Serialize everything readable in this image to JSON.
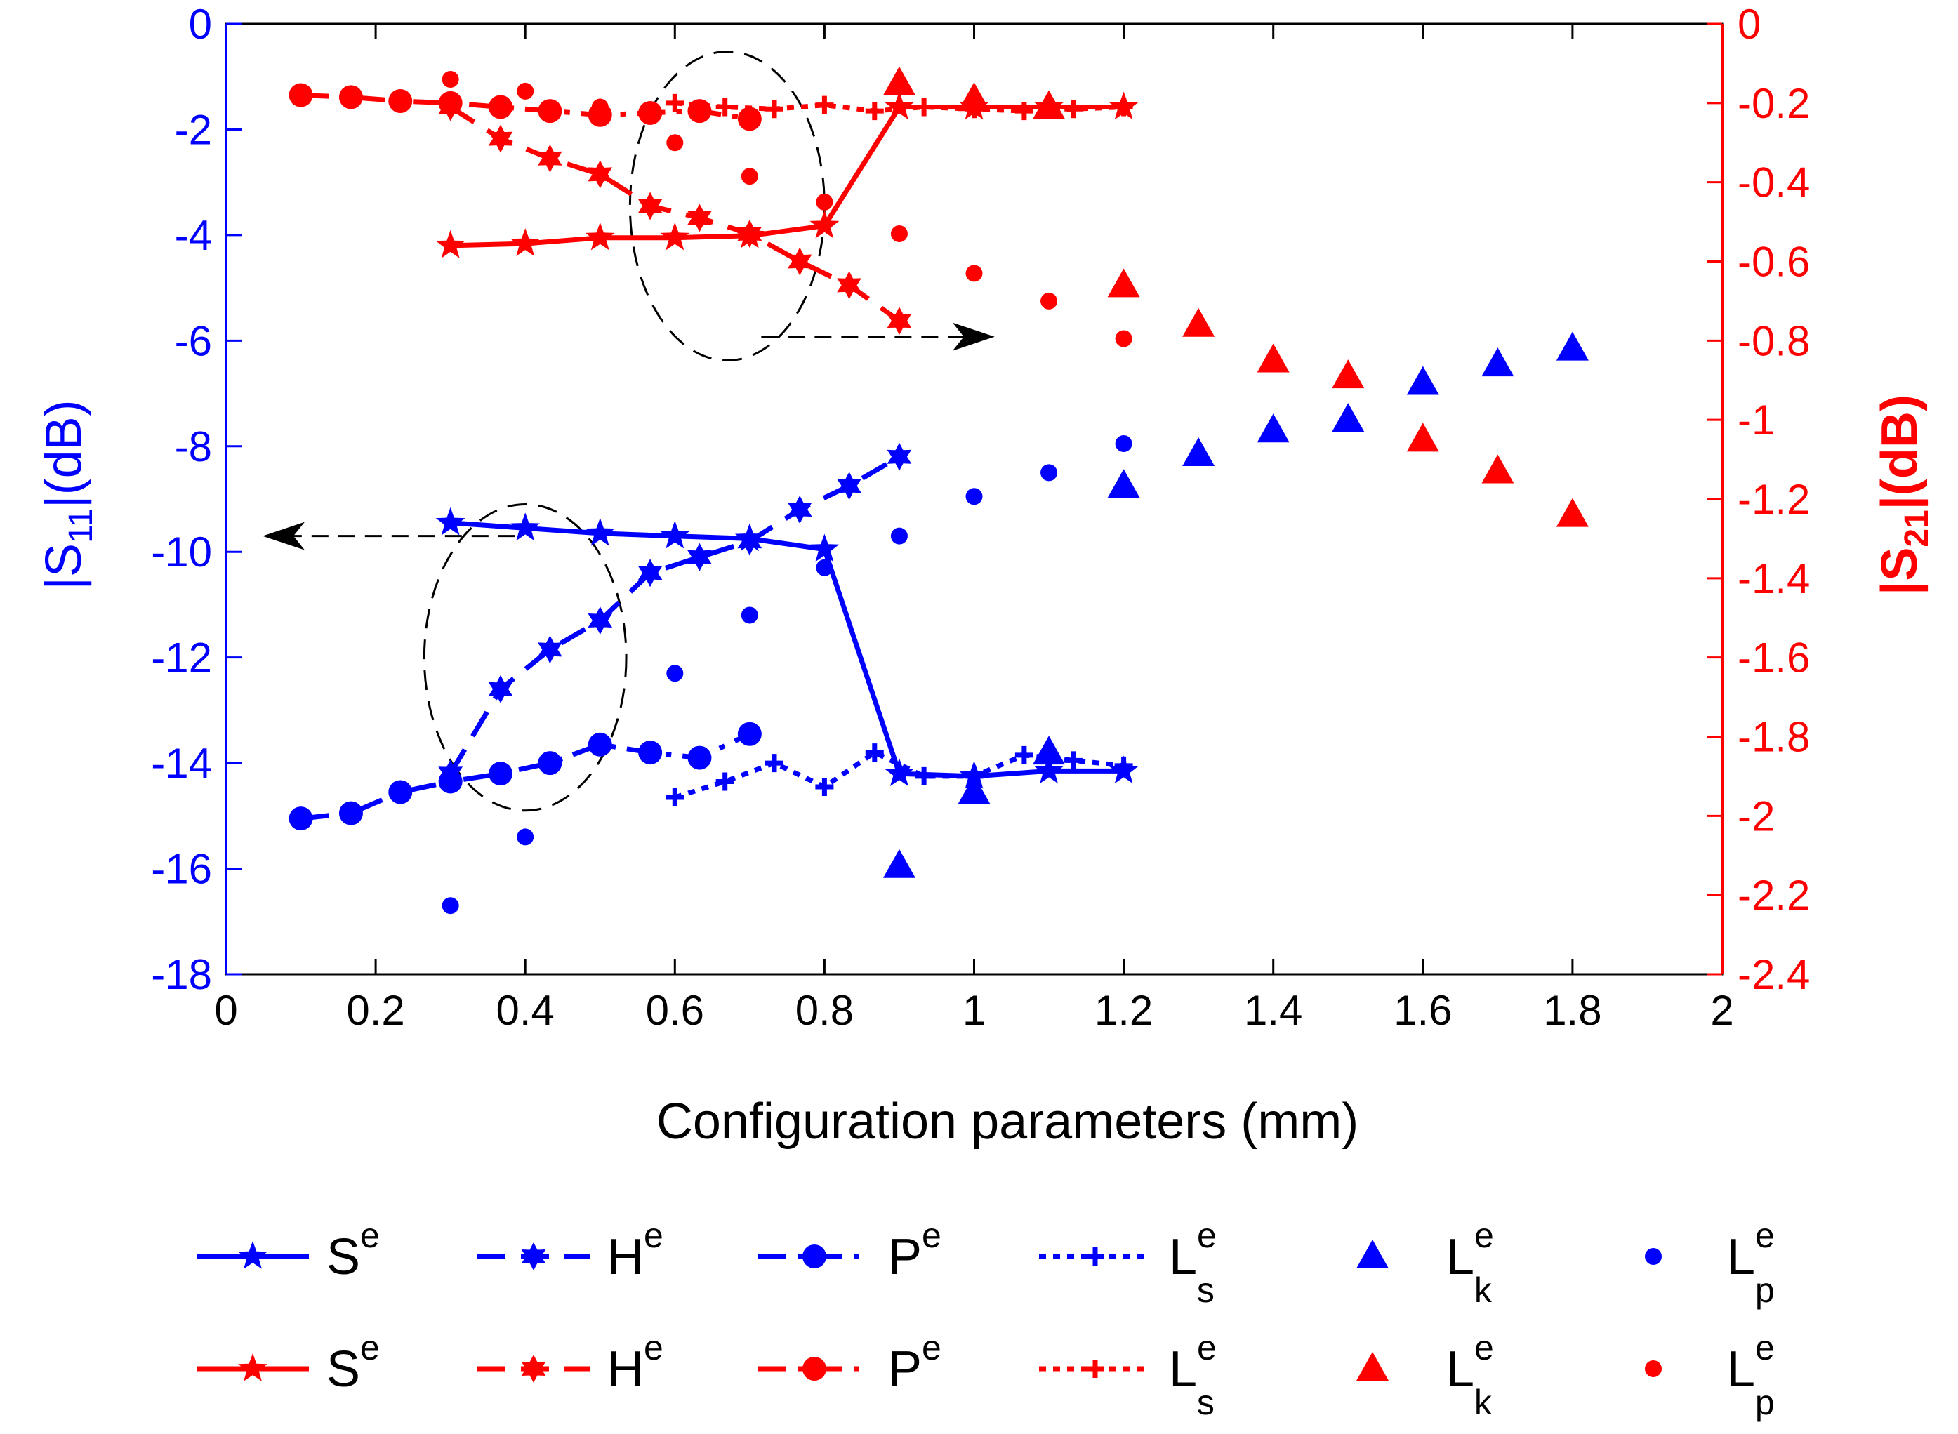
{
  "chart_data": {
    "type": "line",
    "title": "",
    "xlabel": "Configuration parameters (mm)",
    "ylabel_left": "|S11|(dB)",
    "ylabel_right": "|S21|(dB)",
    "xlim": [
      0,
      2
    ],
    "ylim_left": [
      -18,
      0
    ],
    "ylim_right": [
      -2.4,
      0
    ],
    "xticks": [
      0,
      0.2,
      0.4,
      0.6,
      0.8,
      1,
      1.2,
      1.4,
      1.6,
      1.8,
      2
    ],
    "xtick_labels": [
      "0",
      "0.2",
      "0.4",
      "0.6",
      "0.8",
      "1",
      "1.2",
      "1.4",
      "1.6",
      "1.8",
      "2"
    ],
    "yticks_left": [
      0,
      -2,
      -4,
      -6,
      -8,
      -10,
      -12,
      -14,
      -16,
      -18
    ],
    "ytick_labels_left": [
      "0",
      "-2",
      "-4",
      "-6",
      "-8",
      "-10",
      "-12",
      "-14",
      "-16",
      "-18"
    ],
    "yticks_right": [
      0,
      -0.2,
      -0.4,
      -0.6,
      -0.8,
      -1,
      -1.2,
      -1.4,
      -1.6,
      -1.8,
      -2,
      -2.2,
      -2.4
    ],
    "ytick_labels_right": [
      "0",
      "-0.2",
      "-0.4",
      "-0.6",
      "-0.8",
      "-1",
      "-1.2",
      "-1.4",
      "-1.6",
      "-1.8",
      "-2",
      "-2.2",
      "-2.4"
    ],
    "grid": false,
    "legend_position": "bottom",
    "colors": {
      "s11": "#0000ff",
      "s21": "#ff0000",
      "axis_left": "#0000ff",
      "axis_right": "#ff0000",
      "annotation": "#000000"
    },
    "series": [
      {
        "id": "s11-Se",
        "name": "Se",
        "axis": "left",
        "marker": "star",
        "line": "solid",
        "x": [
          0.3,
          0.4,
          0.5,
          0.6,
          0.7,
          0.8,
          0.9,
          1.0,
          1.1,
          1.2
        ],
        "y": [
          -9.45,
          -9.55,
          -9.65,
          -9.7,
          -9.75,
          -9.95,
          -14.2,
          -14.25,
          -14.15,
          -14.15
        ]
      },
      {
        "id": "s11-He",
        "name": "He",
        "axis": "left",
        "marker": "hexstar",
        "line": "dashed",
        "x": [
          0.3,
          0.367,
          0.433,
          0.5,
          0.567,
          0.633,
          0.7,
          0.767,
          0.833,
          0.9
        ],
        "y": [
          -14.2,
          -12.6,
          -11.85,
          -11.3,
          -10.4,
          -10.1,
          -9.8,
          -9.2,
          -8.75,
          -8.2
        ]
      },
      {
        "id": "s11-Pe",
        "name": "Pe",
        "axis": "left",
        "marker": "circle",
        "line": "dashdot",
        "x": [
          0.1,
          0.167,
          0.233,
          0.3,
          0.367,
          0.433,
          0.5,
          0.567,
          0.633,
          0.7
        ],
        "y": [
          -15.05,
          -14.95,
          -14.55,
          -14.35,
          -14.2,
          -14.0,
          -13.65,
          -13.8,
          -13.9,
          -13.45
        ]
      },
      {
        "id": "s11-Ls",
        "name": "Ls",
        "axis": "left",
        "marker": "plus",
        "line": "dotted",
        "x": [
          0.6,
          0.667,
          0.733,
          0.8,
          0.867,
          0.933,
          1.0,
          1.067,
          1.133,
          1.2
        ],
        "y": [
          -14.65,
          -14.35,
          -14.0,
          -14.45,
          -13.8,
          -14.25,
          -14.25,
          -13.85,
          -13.95,
          -14.05
        ]
      },
      {
        "id": "s11-Lk",
        "name": "Lk",
        "axis": "left",
        "marker": "triangle",
        "line": "none",
        "x": [
          0.9,
          1.0,
          1.1,
          1.2,
          1.3,
          1.4,
          1.5,
          1.6,
          1.7,
          1.8
        ],
        "y": [
          -15.95,
          -14.55,
          -13.8,
          -8.75,
          -8.15,
          -7.7,
          -7.5,
          -6.8,
          -6.45,
          -6.15
        ]
      },
      {
        "id": "s11-Lp",
        "name": "Lp",
        "axis": "left",
        "marker": "dot",
        "line": "none",
        "x": [
          0.3,
          0.4,
          0.5,
          0.6,
          0.7,
          0.8,
          0.9,
          1.0,
          1.1,
          1.2
        ],
        "y": [
          -16.7,
          -15.4,
          -13.6,
          -12.3,
          -11.2,
          -10.3,
          -9.7,
          -8.95,
          -8.5,
          -7.95
        ]
      },
      {
        "id": "s21-Se",
        "name": "Se",
        "axis": "right",
        "marker": "star",
        "line": "solid",
        "x": [
          0.3,
          0.4,
          0.5,
          0.6,
          0.7,
          0.8,
          0.9,
          1.0,
          1.1,
          1.2
        ],
        "y": [
          -0.56,
          -0.555,
          -0.54,
          -0.54,
          -0.535,
          -0.51,
          -0.21,
          -0.21,
          -0.21,
          -0.21
        ]
      },
      {
        "id": "s21-He",
        "name": "He",
        "axis": "right",
        "marker": "hexstar",
        "line": "dashed",
        "x": [
          0.3,
          0.367,
          0.433,
          0.5,
          0.567,
          0.633,
          0.7,
          0.767,
          0.833,
          0.9
        ],
        "y": [
          -0.21,
          -0.29,
          -0.34,
          -0.38,
          -0.46,
          -0.49,
          -0.53,
          -0.6,
          -0.66,
          -0.75
        ]
      },
      {
        "id": "s21-Pe",
        "name": "Pe",
        "axis": "right",
        "marker": "circle",
        "line": "dashdot",
        "x": [
          0.1,
          0.167,
          0.233,
          0.3,
          0.367,
          0.433,
          0.5,
          0.567,
          0.633,
          0.7
        ],
        "y": [
          -0.18,
          -0.185,
          -0.195,
          -0.2,
          -0.21,
          -0.22,
          -0.23,
          -0.225,
          -0.22,
          -0.24
        ]
      },
      {
        "id": "s21-Ls",
        "name": "Ls",
        "axis": "right",
        "marker": "plus",
        "line": "dotted",
        "x": [
          0.6,
          0.667,
          0.733,
          0.8,
          0.867,
          0.933,
          1.0,
          1.067,
          1.133,
          1.2
        ],
        "y": [
          -0.2,
          -0.21,
          -0.215,
          -0.205,
          -0.22,
          -0.21,
          -0.215,
          -0.22,
          -0.215,
          -0.21
        ]
      },
      {
        "id": "s21-Lk",
        "name": "Lk",
        "axis": "right",
        "marker": "triangle",
        "line": "none",
        "x": [
          0.9,
          1.0,
          1.1,
          1.2,
          1.3,
          1.4,
          1.5,
          1.6,
          1.7,
          1.8
        ],
        "y": [
          -0.15,
          -0.19,
          -0.21,
          -0.66,
          -0.76,
          -0.85,
          -0.89,
          -1.05,
          -1.13,
          -1.24
        ]
      },
      {
        "id": "s21-Lp",
        "name": "Lp",
        "axis": "right",
        "marker": "dot",
        "line": "none",
        "x": [
          0.3,
          0.4,
          0.5,
          0.6,
          0.7,
          0.8,
          0.9,
          1.0,
          1.1,
          1.2
        ],
        "y": [
          -0.14,
          -0.17,
          -0.21,
          -0.3,
          -0.385,
          -0.45,
          -0.53,
          -0.63,
          -0.7,
          -0.795
        ]
      }
    ],
    "legend": [
      {
        "series": "s11-Se",
        "base": "S",
        "sup": "e",
        "sub": ""
      },
      {
        "series": "s11-He",
        "base": "H",
        "sup": "e",
        "sub": ""
      },
      {
        "series": "s11-Pe",
        "base": "P",
        "sup": "e",
        "sub": ""
      },
      {
        "series": "s11-Ls",
        "base": "L",
        "sup": "e",
        "sub": "s"
      },
      {
        "series": "s11-Lk",
        "base": "L",
        "sup": "e",
        "sub": "k"
      },
      {
        "series": "s11-Lp",
        "base": "L",
        "sup": "e",
        "sub": "p"
      },
      {
        "series": "s21-Se",
        "base": "S",
        "sup": "e",
        "sub": ""
      },
      {
        "series": "s21-He",
        "base": "H",
        "sup": "e",
        "sub": ""
      },
      {
        "series": "s21-Pe",
        "base": "P",
        "sup": "e",
        "sub": ""
      },
      {
        "series": "s21-Ls",
        "base": "L",
        "sup": "e",
        "sub": "s"
      },
      {
        "series": "s21-Lk",
        "base": "L",
        "sup": "e",
        "sub": "k"
      },
      {
        "series": "s21-Lp",
        "base": "L",
        "sup": "e",
        "sub": "p"
      }
    ],
    "annotations": [
      {
        "id": "s11-ellipse",
        "kind": "dashed-ellipse",
        "x_center": 0.4,
        "y_center": -12.0,
        "axis": "left",
        "x_radius": 0.135,
        "y_radius": 2.9,
        "points_to": "left axis",
        "arrow_to_y": -9.7
      },
      {
        "id": "s21-ellipse",
        "kind": "dashed-ellipse",
        "x_center": 0.67,
        "y_center": -0.46,
        "axis": "right",
        "x_radius": 0.13,
        "y_radius": 0.39,
        "points_to": "right axis",
        "arrow_to_y": -0.79
      }
    ]
  }
}
